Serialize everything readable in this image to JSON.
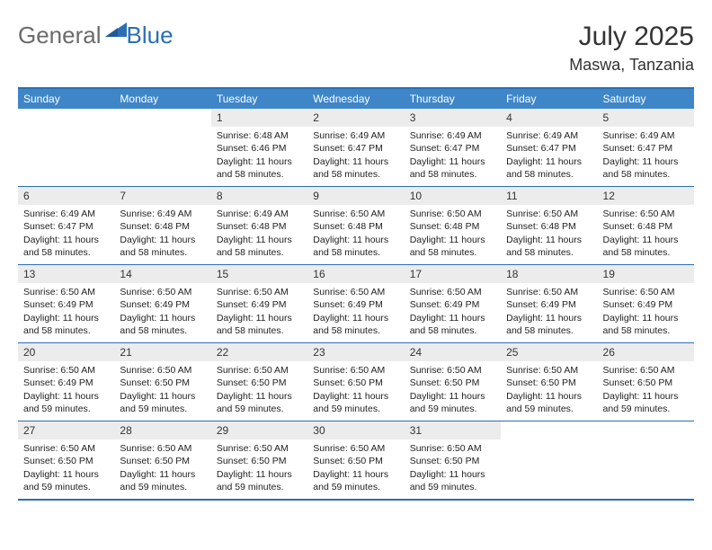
{
  "brand": {
    "text1": "General",
    "text2": "Blue"
  },
  "title": {
    "month": "July 2025",
    "location": "Maswa, Tanzania"
  },
  "colors": {
    "header_blue": "#3f86c8",
    "border_blue": "#2a6fb5",
    "daynum_bg": "#ececec",
    "logo_gray": "#6b6b6b",
    "logo_blue": "#2a6fb5"
  },
  "weekdays": [
    "Sunday",
    "Monday",
    "Tuesday",
    "Wednesday",
    "Thursday",
    "Friday",
    "Saturday"
  ],
  "weeks": [
    [
      null,
      null,
      {
        "n": "1",
        "sr": "6:48 AM",
        "ss": "6:46 PM",
        "dl": "11 hours and 58 minutes."
      },
      {
        "n": "2",
        "sr": "6:49 AM",
        "ss": "6:47 PM",
        "dl": "11 hours and 58 minutes."
      },
      {
        "n": "3",
        "sr": "6:49 AM",
        "ss": "6:47 PM",
        "dl": "11 hours and 58 minutes."
      },
      {
        "n": "4",
        "sr": "6:49 AM",
        "ss": "6:47 PM",
        "dl": "11 hours and 58 minutes."
      },
      {
        "n": "5",
        "sr": "6:49 AM",
        "ss": "6:47 PM",
        "dl": "11 hours and 58 minutes."
      }
    ],
    [
      {
        "n": "6",
        "sr": "6:49 AM",
        "ss": "6:47 PM",
        "dl": "11 hours and 58 minutes."
      },
      {
        "n": "7",
        "sr": "6:49 AM",
        "ss": "6:48 PM",
        "dl": "11 hours and 58 minutes."
      },
      {
        "n": "8",
        "sr": "6:49 AM",
        "ss": "6:48 PM",
        "dl": "11 hours and 58 minutes."
      },
      {
        "n": "9",
        "sr": "6:50 AM",
        "ss": "6:48 PM",
        "dl": "11 hours and 58 minutes."
      },
      {
        "n": "10",
        "sr": "6:50 AM",
        "ss": "6:48 PM",
        "dl": "11 hours and 58 minutes."
      },
      {
        "n": "11",
        "sr": "6:50 AM",
        "ss": "6:48 PM",
        "dl": "11 hours and 58 minutes."
      },
      {
        "n": "12",
        "sr": "6:50 AM",
        "ss": "6:48 PM",
        "dl": "11 hours and 58 minutes."
      }
    ],
    [
      {
        "n": "13",
        "sr": "6:50 AM",
        "ss": "6:49 PM",
        "dl": "11 hours and 58 minutes."
      },
      {
        "n": "14",
        "sr": "6:50 AM",
        "ss": "6:49 PM",
        "dl": "11 hours and 58 minutes."
      },
      {
        "n": "15",
        "sr": "6:50 AM",
        "ss": "6:49 PM",
        "dl": "11 hours and 58 minutes."
      },
      {
        "n": "16",
        "sr": "6:50 AM",
        "ss": "6:49 PM",
        "dl": "11 hours and 58 minutes."
      },
      {
        "n": "17",
        "sr": "6:50 AM",
        "ss": "6:49 PM",
        "dl": "11 hours and 58 minutes."
      },
      {
        "n": "18",
        "sr": "6:50 AM",
        "ss": "6:49 PM",
        "dl": "11 hours and 58 minutes."
      },
      {
        "n": "19",
        "sr": "6:50 AM",
        "ss": "6:49 PM",
        "dl": "11 hours and 58 minutes."
      }
    ],
    [
      {
        "n": "20",
        "sr": "6:50 AM",
        "ss": "6:49 PM",
        "dl": "11 hours and 59 minutes."
      },
      {
        "n": "21",
        "sr": "6:50 AM",
        "ss": "6:50 PM",
        "dl": "11 hours and 59 minutes."
      },
      {
        "n": "22",
        "sr": "6:50 AM",
        "ss": "6:50 PM",
        "dl": "11 hours and 59 minutes."
      },
      {
        "n": "23",
        "sr": "6:50 AM",
        "ss": "6:50 PM",
        "dl": "11 hours and 59 minutes."
      },
      {
        "n": "24",
        "sr": "6:50 AM",
        "ss": "6:50 PM",
        "dl": "11 hours and 59 minutes."
      },
      {
        "n": "25",
        "sr": "6:50 AM",
        "ss": "6:50 PM",
        "dl": "11 hours and 59 minutes."
      },
      {
        "n": "26",
        "sr": "6:50 AM",
        "ss": "6:50 PM",
        "dl": "11 hours and 59 minutes."
      }
    ],
    [
      {
        "n": "27",
        "sr": "6:50 AM",
        "ss": "6:50 PM",
        "dl": "11 hours and 59 minutes."
      },
      {
        "n": "28",
        "sr": "6:50 AM",
        "ss": "6:50 PM",
        "dl": "11 hours and 59 minutes."
      },
      {
        "n": "29",
        "sr": "6:50 AM",
        "ss": "6:50 PM",
        "dl": "11 hours and 59 minutes."
      },
      {
        "n": "30",
        "sr": "6:50 AM",
        "ss": "6:50 PM",
        "dl": "11 hours and 59 minutes."
      },
      {
        "n": "31",
        "sr": "6:50 AM",
        "ss": "6:50 PM",
        "dl": "11 hours and 59 minutes."
      },
      null,
      null
    ]
  ],
  "labels": {
    "sunrise": "Sunrise:",
    "sunset": "Sunset:",
    "daylight": "Daylight:"
  }
}
